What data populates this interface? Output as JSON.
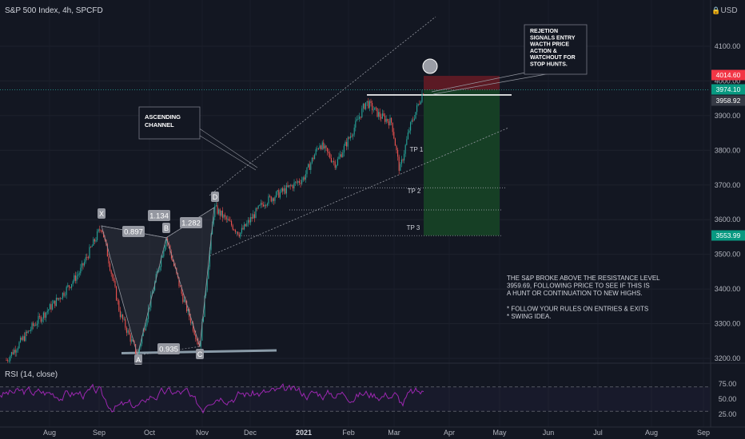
{
  "symbol": {
    "title": "S&P 500 Index, 4h, SPCFD"
  },
  "currency": "USD",
  "colors": {
    "background": "#131722",
    "up": "#26a69a",
    "down": "#ef5350",
    "rsi": "#9c27b0",
    "stop_zone": "#5b1a24",
    "profit_zone": "#163f25",
    "text": "#b2b5be",
    "price_red": "#f23645",
    "price_green": "#089981"
  },
  "chart_data": {
    "type": "candlestick",
    "interval": "4h",
    "y_axis": {
      "ticks": [
        4100,
        4000,
        3900,
        3800,
        3700,
        3600,
        3500,
        3400,
        3300,
        3200
      ],
      "range": [
        3180,
        4270
      ]
    },
    "x_axis": {
      "labels": [
        "Aug",
        "Sep",
        "Oct",
        "Nov",
        "Dec",
        "2021",
        "Feb",
        "Mar",
        "Apr",
        "May",
        "Jun",
        "Jul",
        "Aug",
        "Sep"
      ]
    },
    "price_labels": [
      {
        "text": "4014.60",
        "value": 4014.6,
        "color": "red"
      },
      {
        "text": "3974.10",
        "value": 3974.1,
        "color": "green"
      },
      {
        "text": "3958.92",
        "value": 3958.92,
        "color": "gray"
      },
      {
        "text": "3553.99",
        "value": 3553.99,
        "color": "green"
      }
    ],
    "harmonic_pattern": {
      "points": [
        {
          "label": "X",
          "price": 3582
        },
        {
          "label": "A",
          "price": 3209
        },
        {
          "label": "B",
          "price": 3548
        },
        {
          "label": "C",
          "price": 3234
        },
        {
          "label": "D",
          "price": 3635
        }
      ],
      "ratios": [
        "0.897",
        "1.134",
        "1.282",
        "0.935"
      ]
    },
    "resistance_level": 3959.69,
    "trade": {
      "entry": 3974.1,
      "stop": 4014.6,
      "target": 3553.99
    },
    "take_profits": [
      {
        "label": "TP 1",
        "price": 3790
      },
      {
        "label": "TP 2",
        "price": 3692
      },
      {
        "label": "TP 3",
        "price": 3553.99
      }
    ],
    "rsi": {
      "label": "RSI (14, close)",
      "ticks": [
        75.0,
        50.0,
        25.0
      ],
      "overbought": 70,
      "oversold": 30,
      "range": [
        20,
        85
      ]
    }
  },
  "annotations": {
    "ascending_channel": "ASCENDING\nCHANNEL",
    "rejection_note": "REJETION\nSIGNALS ENTRY\nWACTH PRICE\nACTION &\nWATCHOUT FOR\nSTOP HUNTS.",
    "analysis_lines": [
      "THE S&P BROKE ABOVE THE RESISTANCE LEVEL",
      "3959.69, FOLLOWING PRICE TO SEE IF THIS IS",
      "A HUNT OR CONTINUATION TO NEW HIGHS.",
      "",
      "* FOLLOW YOUR RULES ON ENTRIES & EXITS",
      "* SWING IDEA."
    ]
  }
}
